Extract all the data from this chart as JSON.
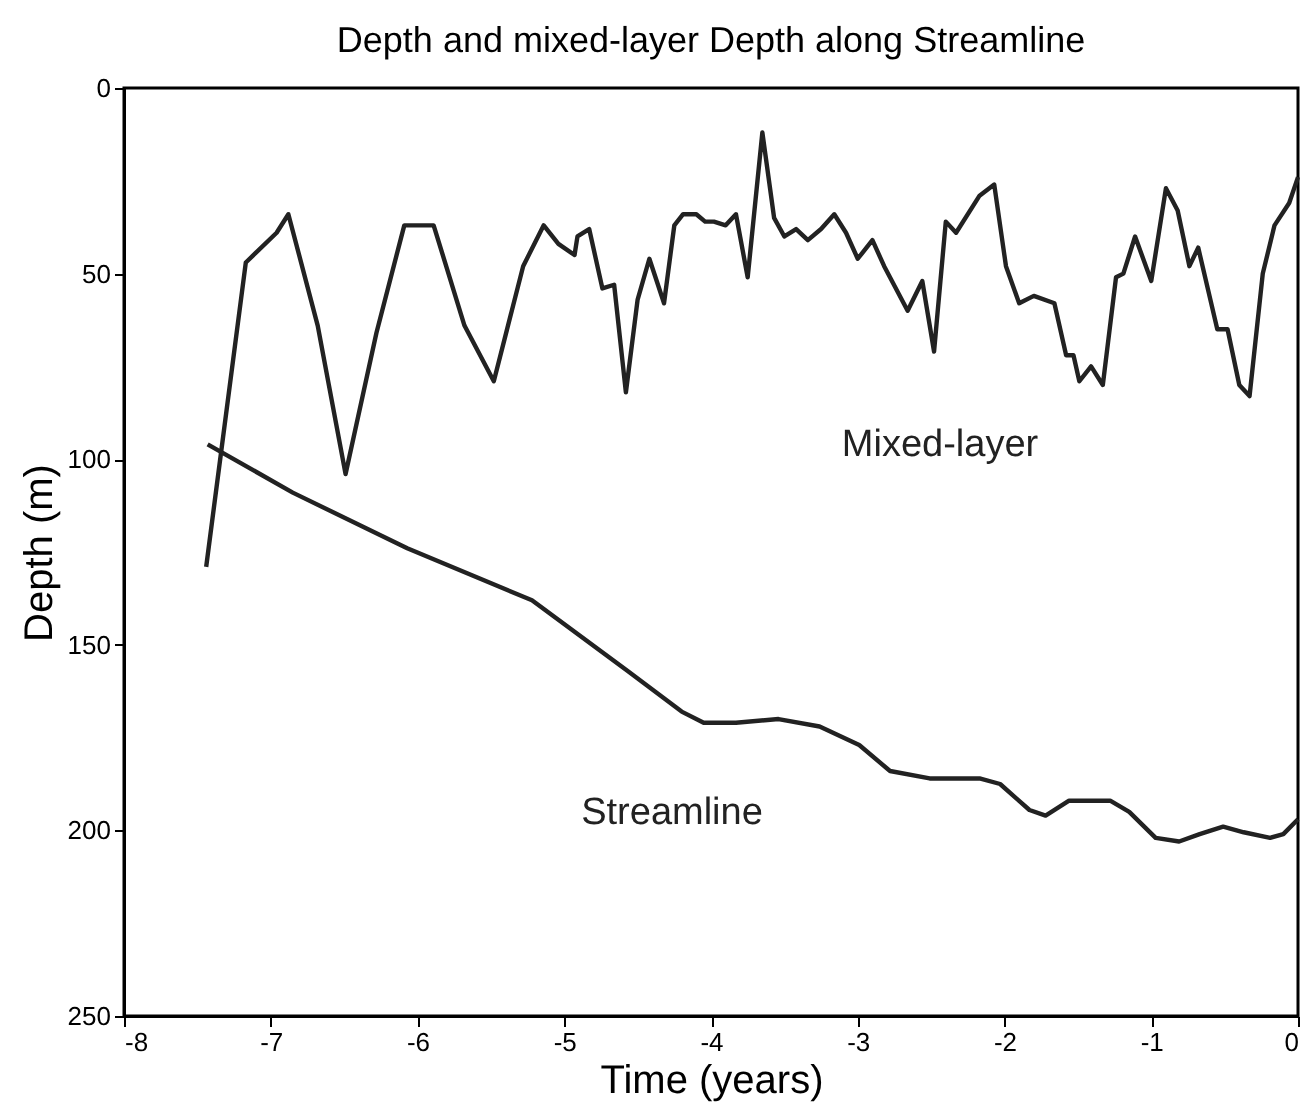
{
  "chart_data": {
    "type": "line",
    "title": "Depth and mixed-layer Depth along Streamline",
    "xlabel": "Time (years)",
    "ylabel": "Depth (m)",
    "xlim": [
      -8,
      0
    ],
    "xticks": [
      -8,
      -7,
      -6,
      -5,
      -4,
      -3,
      -2,
      -1,
      0
    ],
    "ylim": [
      250,
      0
    ],
    "yticks": [
      0,
      50,
      100,
      150,
      200,
      250
    ],
    "grid": false,
    "legend": false,
    "series": [
      {
        "name": "Mixed-layer",
        "color": "#222222",
        "x": [
          -7.44,
          -7.17,
          -6.96,
          -6.88,
          -6.68,
          -6.49,
          -6.28,
          -6.09,
          -5.89,
          -5.68,
          -5.48,
          -5.28,
          -5.14,
          -5.04,
          -4.93,
          -4.91,
          -4.83,
          -4.74,
          -4.66,
          -4.58,
          -4.5,
          -4.42,
          -4.32,
          -4.25,
          -4.19,
          -4.1,
          -4.04,
          -3.98,
          -3.9,
          -3.83,
          -3.75,
          -3.65,
          -3.57,
          -3.5,
          -3.42,
          -3.34,
          -3.25,
          -3.16,
          -3.08,
          -3.0,
          -2.9,
          -2.82,
          -2.66,
          -2.56,
          -2.48,
          -2.4,
          -2.33,
          -2.17,
          -2.07,
          -1.99,
          -1.9,
          -1.8,
          -1.66,
          -1.58,
          -1.53,
          -1.49,
          -1.41,
          -1.33,
          -1.24,
          -1.19,
          -1.11,
          -1.0,
          -0.9,
          -0.82,
          -0.74,
          -0.68,
          -0.55,
          -0.48,
          -0.4,
          -0.33,
          -0.24,
          -0.16,
          -0.06,
          0.0
        ],
        "values": [
          129,
          47,
          39,
          34,
          64,
          104,
          66,
          37,
          37,
          64,
          79,
          48,
          37,
          42,
          45,
          40,
          38,
          54,
          53,
          82,
          57,
          46,
          58,
          37,
          34,
          34,
          36,
          36,
          37,
          34,
          51,
          12,
          35,
          40,
          38,
          41,
          38,
          34,
          39,
          46,
          41,
          48,
          60,
          52,
          71,
          36,
          39,
          29,
          26,
          48,
          58,
          56,
          58,
          72,
          72,
          79,
          75,
          80,
          51,
          50,
          40,
          52,
          27,
          33,
          48,
          43,
          65,
          65,
          80,
          83,
          50,
          37,
          31,
          24
        ]
      },
      {
        "name": "Streamline",
        "color": "#222222",
        "x": [
          -7.43,
          -6.85,
          -6.07,
          -5.22,
          -4.57,
          -4.2,
          -4.05,
          -3.83,
          -3.54,
          -3.26,
          -2.99,
          -2.78,
          -2.51,
          -2.17,
          -2.03,
          -1.83,
          -1.72,
          -1.56,
          -1.28,
          -1.15,
          -0.97,
          -0.81,
          -0.67,
          -0.51,
          -0.37,
          -0.19,
          -0.1,
          0.0
        ],
        "values": [
          96,
          109,
          124,
          138,
          157,
          168,
          171,
          171,
          170,
          172,
          177,
          184,
          186,
          186,
          187.5,
          194.5,
          196,
          192,
          192,
          195,
          202,
          203,
          201,
          199,
          200.5,
          202,
          201,
          197
        ]
      }
    ]
  }
}
